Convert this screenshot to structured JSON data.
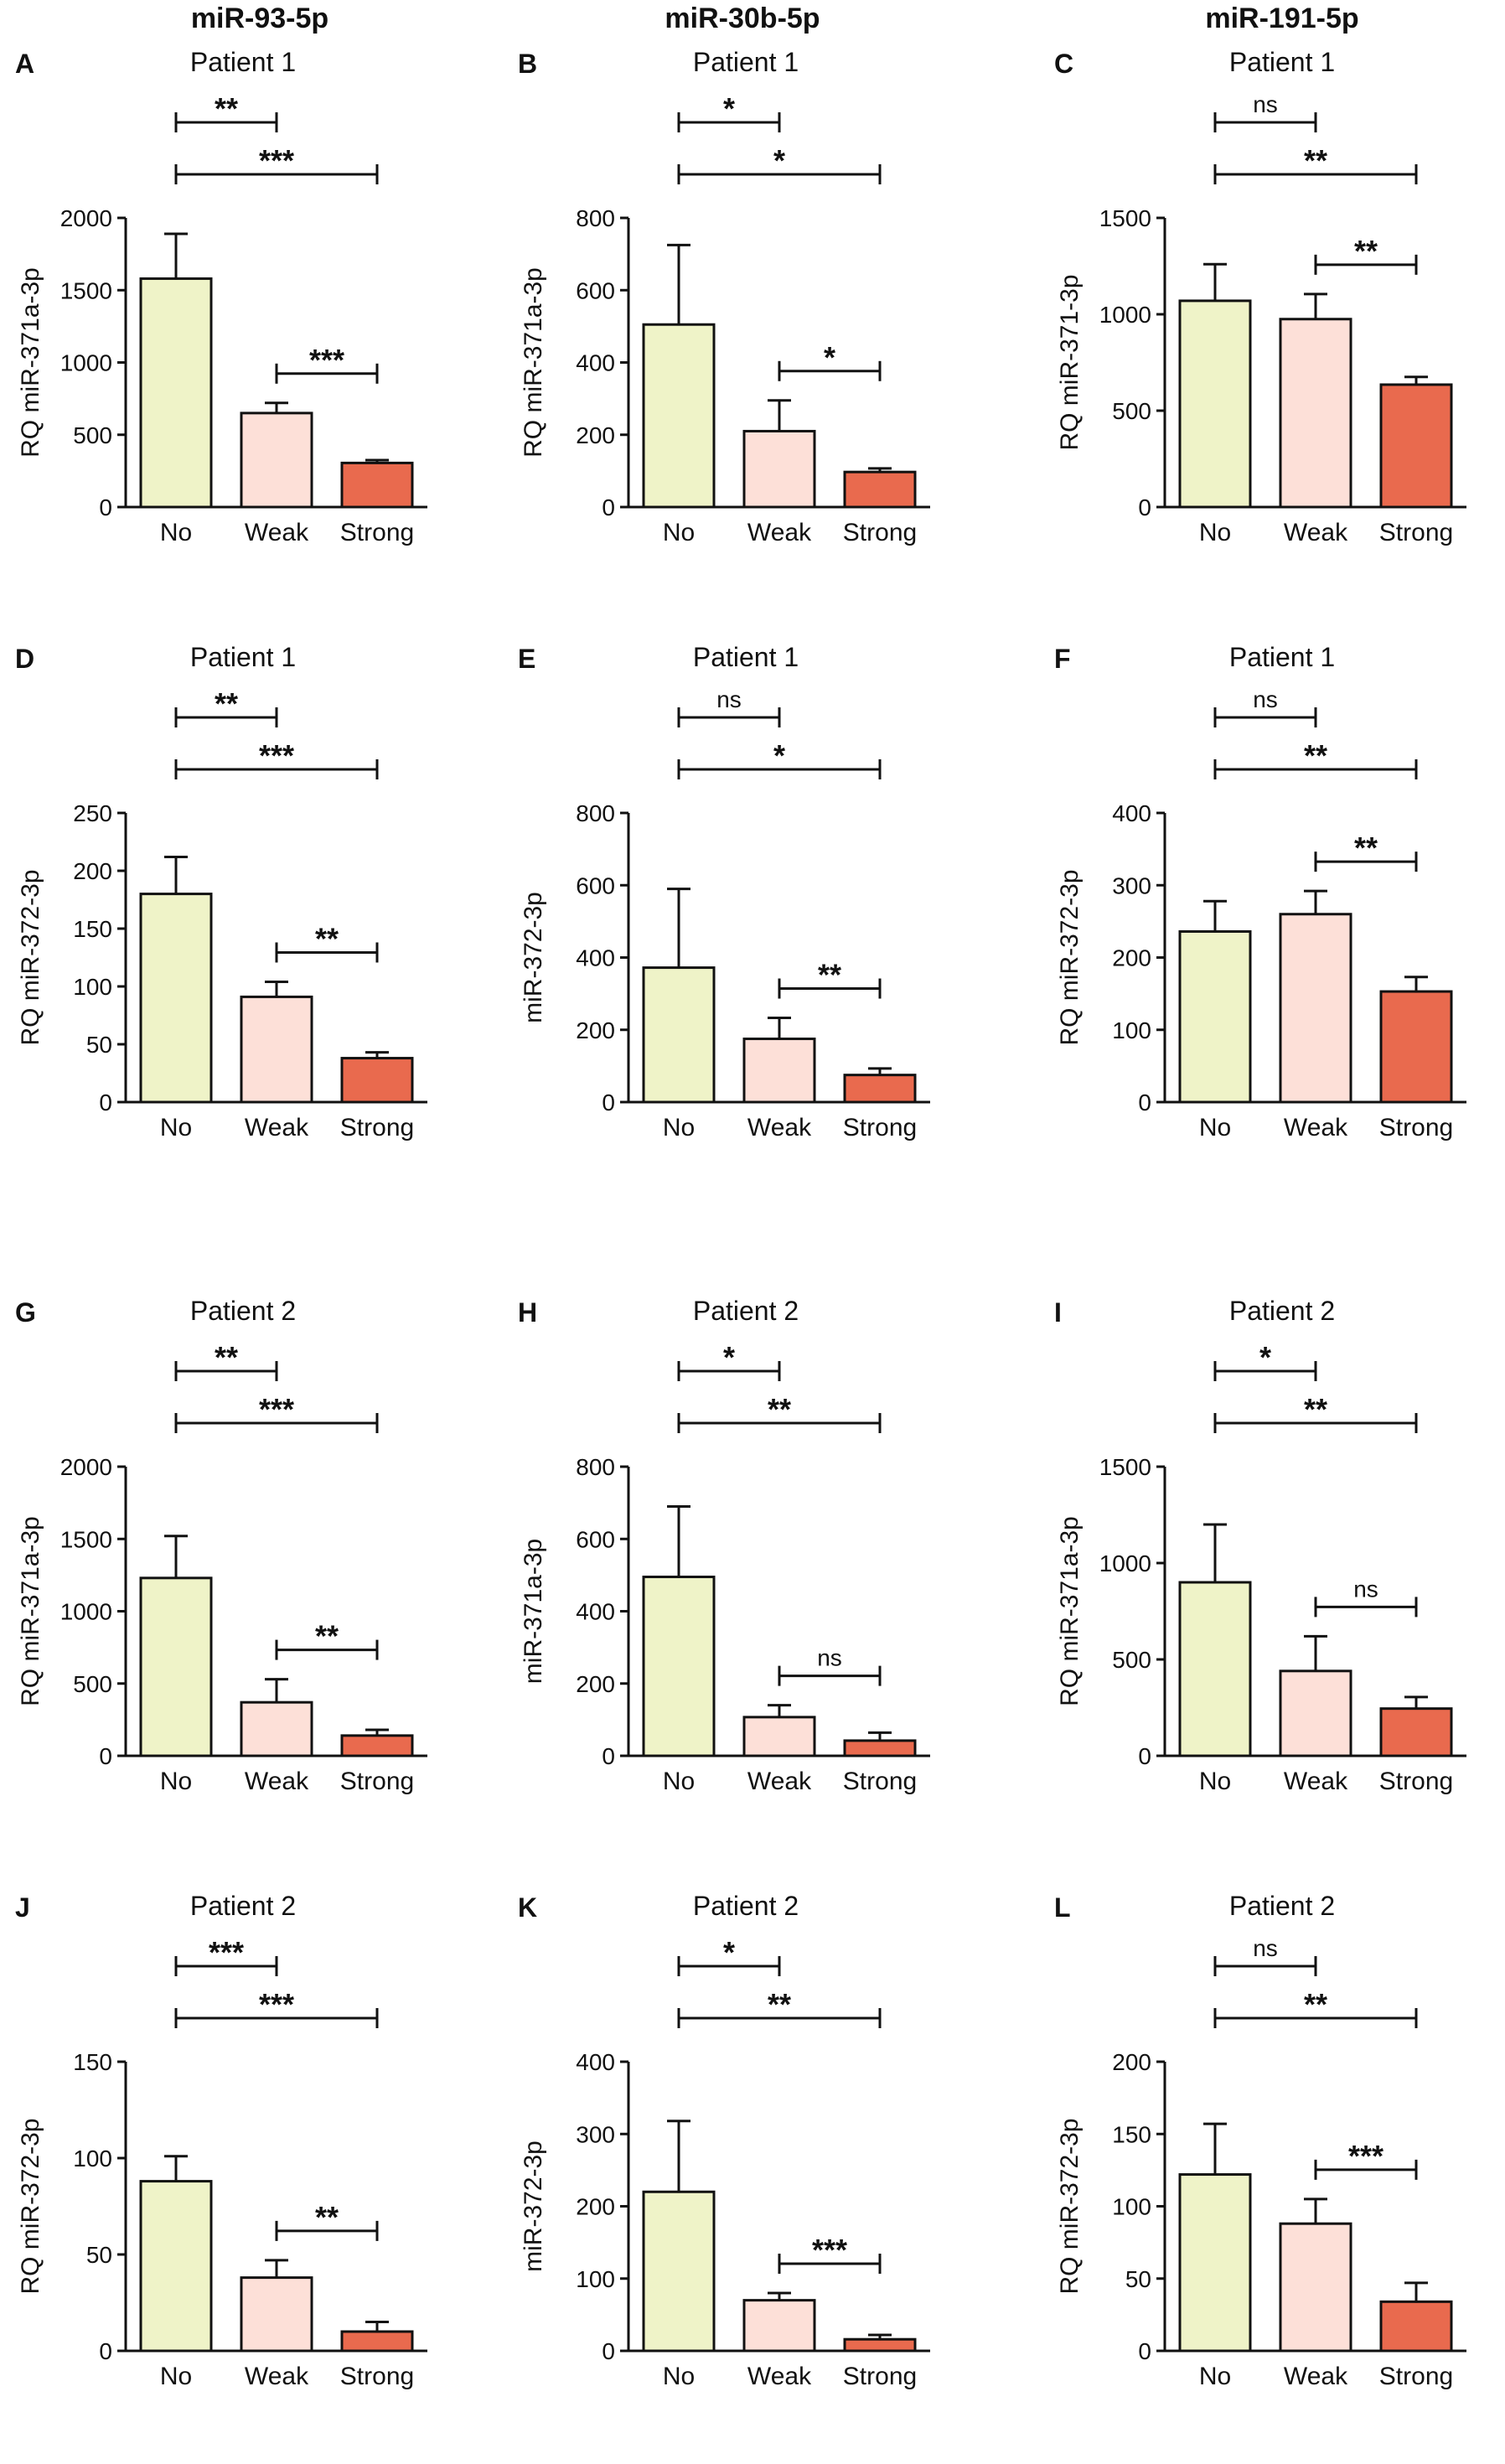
{
  "column_headers": [
    "miR-93-5p",
    "miR-30b-5p",
    "miR-191-5p"
  ],
  "colors": {
    "No": "#eff3c8",
    "Weak": "#fde0d8",
    "Strong": "#e96a4e",
    "stroke": "#111111"
  },
  "chart_data": [
    {
      "type": "bar",
      "panel": "A",
      "title": "Patient 1",
      "ylabel": "RQ miR-371a-3p",
      "ylim": [
        0,
        2000
      ],
      "yticks": [
        0,
        500,
        1000,
        1500,
        2000
      ],
      "categories": [
        "No",
        "Weak",
        "Strong"
      ],
      "values": [
        1580,
        650,
        305
      ],
      "errors": [
        310,
        70,
        20
      ],
      "comparisons": [
        {
          "from": "No",
          "to": "Weak",
          "label": "**"
        },
        {
          "from": "No",
          "to": "Strong",
          "label": "***"
        },
        {
          "from": "Weak",
          "to": "Strong",
          "label": "***"
        }
      ]
    },
    {
      "type": "bar",
      "panel": "B",
      "title": "Patient 1",
      "ylabel": "RQ miR-371a-3p",
      "ylim": [
        0,
        800
      ],
      "yticks": [
        0,
        200,
        400,
        600,
        800
      ],
      "categories": [
        "No",
        "Weak",
        "Strong"
      ],
      "values": [
        505,
        210,
        97
      ],
      "errors": [
        220,
        85,
        10
      ],
      "comparisons": [
        {
          "from": "No",
          "to": "Weak",
          "label": "*"
        },
        {
          "from": "No",
          "to": "Strong",
          "label": "*"
        },
        {
          "from": "Weak",
          "to": "Strong",
          "label": "*"
        }
      ]
    },
    {
      "type": "bar",
      "panel": "C",
      "title": "Patient 1",
      "ylabel": "RQ miR-371-3p",
      "ylim": [
        0,
        1500
      ],
      "yticks": [
        0,
        500,
        1000,
        1500
      ],
      "categories": [
        "No",
        "Weak",
        "Strong"
      ],
      "values": [
        1070,
        975,
        635
      ],
      "errors": [
        190,
        130,
        40
      ],
      "comparisons": [
        {
          "from": "No",
          "to": "Weak",
          "label": "ns"
        },
        {
          "from": "No",
          "to": "Strong",
          "label": "**"
        },
        {
          "from": "Weak",
          "to": "Strong",
          "label": "**"
        }
      ]
    },
    {
      "type": "bar",
      "panel": "D",
      "title": "Patient 1",
      "ylabel": "RQ miR-372-3p",
      "ylim": [
        0,
        250
      ],
      "yticks": [
        0,
        50,
        100,
        150,
        200,
        250
      ],
      "categories": [
        "No",
        "Weak",
        "Strong"
      ],
      "values": [
        180,
        91,
        38
      ],
      "errors": [
        32,
        13,
        5
      ],
      "comparisons": [
        {
          "from": "No",
          "to": "Weak",
          "label": "**"
        },
        {
          "from": "No",
          "to": "Strong",
          "label": "***"
        },
        {
          "from": "Weak",
          "to": "Strong",
          "label": "**"
        }
      ]
    },
    {
      "type": "bar",
      "panel": "E",
      "title": "Patient 1",
      "ylabel": "miR-372-3p",
      "ylim": [
        0,
        800
      ],
      "yticks": [
        0,
        200,
        400,
        600,
        800
      ],
      "categories": [
        "No",
        "Weak",
        "Strong"
      ],
      "values": [
        372,
        175,
        75
      ],
      "errors": [
        218,
        58,
        18
      ],
      "comparisons": [
        {
          "from": "No",
          "to": "Weak",
          "label": "ns"
        },
        {
          "from": "No",
          "to": "Strong",
          "label": "*"
        },
        {
          "from": "Weak",
          "to": "Strong",
          "label": "**"
        }
      ]
    },
    {
      "type": "bar",
      "panel": "F",
      "title": "Patient 1",
      "ylabel": "RQ miR-372-3p",
      "ylim": [
        0,
        400
      ],
      "yticks": [
        0,
        100,
        200,
        300,
        400
      ],
      "categories": [
        "No",
        "Weak",
        "Strong"
      ],
      "values": [
        236,
        260,
        153
      ],
      "errors": [
        42,
        32,
        20
      ],
      "comparisons": [
        {
          "from": "No",
          "to": "Weak",
          "label": "ns"
        },
        {
          "from": "No",
          "to": "Strong",
          "label": "**"
        },
        {
          "from": "Weak",
          "to": "Strong",
          "label": "**"
        }
      ]
    },
    {
      "type": "bar",
      "panel": "G",
      "title": "Patient 2",
      "ylabel": "RQ miR-371a-3p",
      "ylim": [
        0,
        2000
      ],
      "yticks": [
        0,
        500,
        1000,
        1500,
        2000
      ],
      "categories": [
        "No",
        "Weak",
        "Strong"
      ],
      "values": [
        1230,
        370,
        140
      ],
      "errors": [
        290,
        160,
        40
      ],
      "comparisons": [
        {
          "from": "No",
          "to": "Weak",
          "label": "**"
        },
        {
          "from": "No",
          "to": "Strong",
          "label": "***"
        },
        {
          "from": "Weak",
          "to": "Strong",
          "label": "**"
        }
      ]
    },
    {
      "type": "bar",
      "panel": "H",
      "title": "Patient 2",
      "ylabel": "miR-371a-3p",
      "ylim": [
        0,
        800
      ],
      "yticks": [
        0,
        200,
        400,
        600,
        800
      ],
      "categories": [
        "No",
        "Weak",
        "Strong"
      ],
      "values": [
        495,
        107,
        42
      ],
      "errors": [
        195,
        33,
        22
      ],
      "comparisons": [
        {
          "from": "No",
          "to": "Weak",
          "label": "*"
        },
        {
          "from": "No",
          "to": "Strong",
          "label": "**"
        },
        {
          "from": "Weak",
          "to": "Strong",
          "label": "ns"
        }
      ]
    },
    {
      "type": "bar",
      "panel": "I",
      "title": "Patient 2",
      "ylabel": "RQ miR-371a-3p",
      "ylim": [
        0,
        1500
      ],
      "yticks": [
        0,
        500,
        1000,
        1500
      ],
      "categories": [
        "No",
        "Weak",
        "Strong"
      ],
      "values": [
        900,
        440,
        245
      ],
      "errors": [
        300,
        180,
        60
      ],
      "comparisons": [
        {
          "from": "No",
          "to": "Weak",
          "label": "*"
        },
        {
          "from": "No",
          "to": "Strong",
          "label": "**"
        },
        {
          "from": "Weak",
          "to": "Strong",
          "label": "ns"
        }
      ]
    },
    {
      "type": "bar",
      "panel": "J",
      "title": "Patient 2",
      "ylabel": "RQ miR-372-3p",
      "ylim": [
        0,
        150
      ],
      "yticks": [
        0,
        50,
        100,
        150
      ],
      "categories": [
        "No",
        "Weak",
        "Strong"
      ],
      "values": [
        88,
        38,
        10
      ],
      "errors": [
        13,
        9,
        5
      ],
      "comparisons": [
        {
          "from": "No",
          "to": "Weak",
          "label": "***"
        },
        {
          "from": "No",
          "to": "Strong",
          "label": "***"
        },
        {
          "from": "Weak",
          "to": "Strong",
          "label": "**"
        }
      ]
    },
    {
      "type": "bar",
      "panel": "K",
      "title": "Patient 2",
      "ylabel": "miR-372-3p",
      "ylim": [
        0,
        400
      ],
      "yticks": [
        0,
        100,
        200,
        300,
        400
      ],
      "categories": [
        "No",
        "Weak",
        "Strong"
      ],
      "values": [
        220,
        70,
        16
      ],
      "errors": [
        98,
        10,
        6
      ],
      "comparisons": [
        {
          "from": "No",
          "to": "Weak",
          "label": "*"
        },
        {
          "from": "No",
          "to": "Strong",
          "label": "**"
        },
        {
          "from": "Weak",
          "to": "Strong",
          "label": "***"
        }
      ]
    },
    {
      "type": "bar",
      "panel": "L",
      "title": "Patient 2",
      "ylabel": "RQ miR-372-3p",
      "ylim": [
        0,
        200
      ],
      "yticks": [
        0,
        50,
        100,
        150,
        200
      ],
      "categories": [
        "No",
        "Weak",
        "Strong"
      ],
      "values": [
        122,
        88,
        34
      ],
      "errors": [
        35,
        17,
        13
      ],
      "comparisons": [
        {
          "from": "No",
          "to": "Weak",
          "label": "ns"
        },
        {
          "from": "No",
          "to": "Strong",
          "label": "**"
        },
        {
          "from": "Weak",
          "to": "Strong",
          "label": "***"
        }
      ]
    }
  ]
}
